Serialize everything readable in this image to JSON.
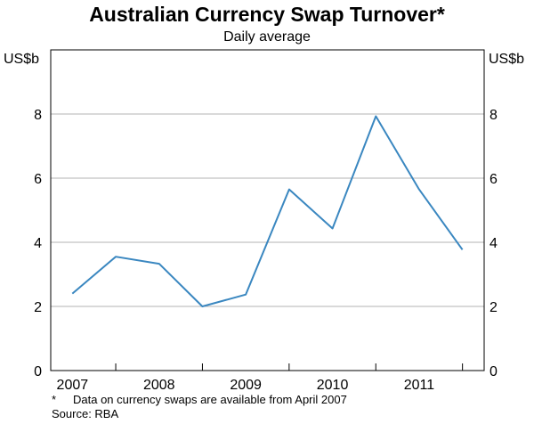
{
  "chart_data": {
    "type": "line",
    "title": "Australian Currency Swap Turnover*",
    "subtitle": "Daily average",
    "ylabel_left": "US$b",
    "ylabel_right": "US$b",
    "xlabel": "",
    "ylim": [
      0,
      10
    ],
    "yticks": [
      0,
      2,
      4,
      6,
      8
    ],
    "xlim": [
      2006.75,
      2011.75
    ],
    "xticks": [
      2007,
      2008,
      2009,
      2010,
      2011
    ],
    "grid": true,
    "series": [
      {
        "color": "#3a87c0",
        "x": [
          2007.0,
          2007.5,
          2008.0,
          2008.5,
          2009.0,
          2009.5,
          2010.0,
          2010.5,
          2011.0,
          2011.5
        ],
        "y": [
          2.4,
          3.55,
          3.33,
          2.0,
          2.37,
          5.65,
          4.43,
          7.93,
          5.65,
          3.77
        ]
      }
    ],
    "footnotes": {
      "star": "*",
      "note": "Data on currency swaps are available from April 2007",
      "source": "Source: RBA"
    }
  }
}
